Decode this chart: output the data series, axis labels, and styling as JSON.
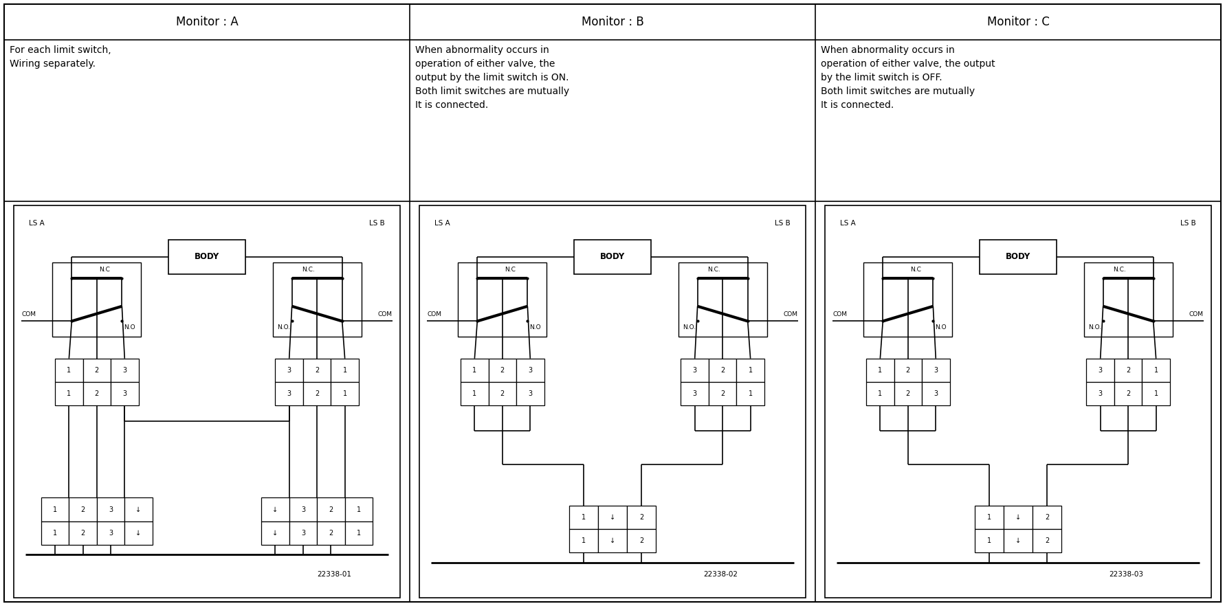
{
  "col_headers": [
    "Monitor : A",
    "Monitor : B",
    "Monitor : C"
  ],
  "col_texts": [
    "For each limit switch,\nWiring separately.",
    "When abnormality occurs in\noperation of either valve, the\noutput by the limit switch is ON.\nBoth limit switches are mutually\nIt is connected.",
    "When abnormality occurs in\noperation of either valve, the output\nby the limit switch is OFF.\nBoth limit switches are mutually\nIt is connected."
  ],
  "diagram_codes": [
    "22338-01",
    "22338-02",
    "22338-03"
  ],
  "background": "#ffffff",
  "border_color": "#000000",
  "text_color": "#000000"
}
